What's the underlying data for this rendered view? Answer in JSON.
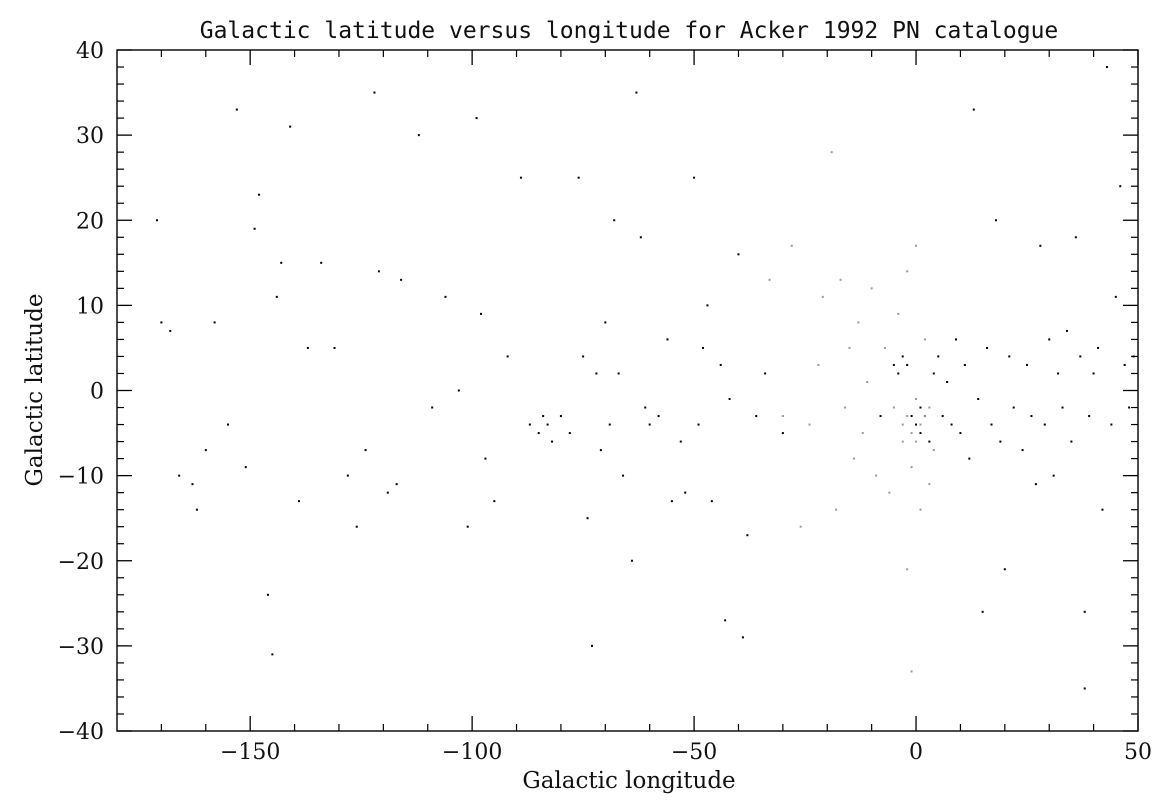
{
  "chart_data": {
    "type": "scatter",
    "title": "Galactic latitude versus longitude for Acker 1992 PN catalogue",
    "xlabel": "Galactic longitude",
    "ylabel": "Galactic latitude",
    "xlim": [
      -180,
      50
    ],
    "ylim": [
      -40,
      40
    ],
    "x_ticks": [
      -150,
      -100,
      -50,
      0,
      50
    ],
    "y_ticks": [
      -40,
      -30,
      -20,
      -10,
      0,
      10,
      20,
      30,
      40
    ],
    "x_tick_labels": [
      "−150",
      "−100",
      "−50",
      "0",
      "50"
    ],
    "y_tick_labels": [
      "−40",
      "−30",
      "−20",
      "−10",
      "0",
      "10",
      "20",
      "30",
      "40"
    ],
    "grid": false,
    "series": [
      {
        "color": "#000000",
        "points": [
          [
            -171,
            20
          ],
          [
            -170,
            8
          ],
          [
            -168,
            7
          ],
          [
            -166,
            -10
          ],
          [
            -163,
            -11
          ],
          [
            -162,
            -14
          ],
          [
            -160,
            -7
          ],
          [
            -158,
            8
          ],
          [
            -155,
            -4
          ],
          [
            -153,
            33
          ],
          [
            -151,
            -9
          ],
          [
            -149,
            19
          ],
          [
            -148,
            23
          ],
          [
            -146,
            -24
          ],
          [
            -145,
            -31
          ],
          [
            -144,
            11
          ],
          [
            -143,
            15
          ],
          [
            -141,
            31
          ],
          [
            -139,
            -13
          ],
          [
            -137,
            5
          ],
          [
            -134,
            15
          ],
          [
            -131,
            5
          ],
          [
            -128,
            -10
          ],
          [
            -126,
            -16
          ],
          [
            -124,
            -7
          ],
          [
            -122,
            35
          ],
          [
            -121,
            14
          ],
          [
            -119,
            -12
          ],
          [
            -117,
            -11
          ],
          [
            -116,
            13
          ],
          [
            -112,
            30
          ],
          [
            -109,
            -2
          ],
          [
            -106,
            11
          ],
          [
            -103,
            0
          ],
          [
            -101,
            -16
          ],
          [
            -99,
            32
          ],
          [
            -98,
            9
          ],
          [
            -97,
            -8
          ],
          [
            -95,
            -13
          ],
          [
            -92,
            4
          ],
          [
            -89,
            25
          ],
          [
            -87,
            -4
          ],
          [
            -85,
            -5
          ],
          [
            -84,
            -3
          ],
          [
            -83,
            -4
          ],
          [
            -82,
            -6
          ],
          [
            -80,
            -3
          ],
          [
            -78,
            -5
          ],
          [
            -76,
            25
          ],
          [
            -75,
            4
          ],
          [
            -74,
            -15
          ],
          [
            -73,
            -30
          ],
          [
            -72,
            2
          ],
          [
            -71,
            -7
          ],
          [
            -70,
            8
          ],
          [
            -69,
            -4
          ],
          [
            -68,
            20
          ],
          [
            -67,
            2
          ],
          [
            -66,
            -10
          ],
          [
            -64,
            -20
          ],
          [
            -63,
            35
          ],
          [
            -62,
            18
          ],
          [
            -61,
            -2
          ],
          [
            -60,
            -4
          ],
          [
            -58,
            -3
          ],
          [
            -56,
            6
          ],
          [
            -55,
            -13
          ],
          [
            -53,
            -6
          ],
          [
            -52,
            -12
          ],
          [
            -50,
            25
          ],
          [
            -49,
            -4
          ],
          [
            -48,
            5
          ],
          [
            -47,
            10
          ],
          [
            -46,
            -13
          ],
          [
            -44,
            3
          ],
          [
            -43,
            -27
          ],
          [
            -42,
            -1
          ],
          [
            -40,
            16
          ],
          [
            -39,
            -29
          ],
          [
            -38,
            -17
          ],
          [
            -36,
            -3
          ],
          [
            -34,
            2
          ],
          [
            -30,
            -5
          ],
          [
            -8,
            -3
          ],
          [
            -5,
            3
          ],
          [
            -4,
            2
          ],
          [
            -3,
            4
          ],
          [
            -2,
            3
          ],
          [
            -1,
            -3
          ],
          [
            0,
            -4
          ],
          [
            1,
            -2
          ],
          [
            1,
            -5
          ],
          [
            2,
            -3
          ],
          [
            3,
            -6
          ],
          [
            4,
            2
          ],
          [
            5,
            4
          ],
          [
            6,
            -3
          ],
          [
            7,
            1
          ],
          [
            8,
            -4
          ],
          [
            9,
            6
          ],
          [
            10,
            -5
          ],
          [
            11,
            3
          ],
          [
            12,
            -8
          ],
          [
            13,
            33
          ],
          [
            14,
            -1
          ],
          [
            15,
            -26
          ],
          [
            16,
            5
          ],
          [
            17,
            -4
          ],
          [
            18,
            20
          ],
          [
            19,
            -6
          ],
          [
            20,
            -21
          ],
          [
            21,
            4
          ],
          [
            22,
            -2
          ],
          [
            24,
            -7
          ],
          [
            25,
            3
          ],
          [
            26,
            -3
          ],
          [
            27,
            -11
          ],
          [
            28,
            17
          ],
          [
            29,
            -4
          ],
          [
            30,
            6
          ],
          [
            31,
            -10
          ],
          [
            32,
            2
          ],
          [
            33,
            -2
          ],
          [
            34,
            7
          ],
          [
            35,
            -6
          ],
          [
            36,
            18
          ],
          [
            37,
            4
          ],
          [
            38,
            -26
          ],
          [
            38,
            -35
          ],
          [
            39,
            -3
          ],
          [
            40,
            2
          ],
          [
            41,
            5
          ],
          [
            42,
            -14
          ],
          [
            43,
            38
          ],
          [
            44,
            -4
          ],
          [
            45,
            11
          ],
          [
            46,
            24
          ],
          [
            47,
            3
          ],
          [
            48,
            -2
          ],
          [
            49,
            4
          ]
        ]
      },
      {
        "color": "#999999",
        "points": [
          [
            -33,
            13
          ],
          [
            -30,
            -3
          ],
          [
            -28,
            17
          ],
          [
            -26,
            -16
          ],
          [
            -24,
            -4
          ],
          [
            -22,
            3
          ],
          [
            -21,
            11
          ],
          [
            -19,
            28
          ],
          [
            -18,
            -14
          ],
          [
            -17,
            13
          ],
          [
            -16,
            -2
          ],
          [
            -15,
            5
          ],
          [
            -14,
            -8
          ],
          [
            -13,
            8
          ],
          [
            -12,
            -5
          ],
          [
            -11,
            1
          ],
          [
            -10,
            12
          ],
          [
            -9,
            -10
          ],
          [
            -7,
            5
          ],
          [
            -6,
            -12
          ],
          [
            -5,
            -2
          ],
          [
            -4,
            9
          ],
          [
            -3,
            -6
          ],
          [
            -2,
            14
          ],
          [
            -1,
            -9
          ],
          [
            0,
            17
          ],
          [
            1,
            -14
          ],
          [
            2,
            6
          ],
          [
            3,
            -11
          ],
          [
            4,
            -7
          ],
          [
            -2,
            -21
          ],
          [
            -1,
            -33
          ],
          [
            0,
            -1
          ],
          [
            -3,
            -4
          ],
          [
            2,
            -3
          ],
          [
            -1,
            -5
          ],
          [
            1,
            -4
          ],
          [
            3,
            -2
          ],
          [
            -2,
            -3
          ],
          [
            0,
            -6
          ]
        ]
      }
    ]
  }
}
